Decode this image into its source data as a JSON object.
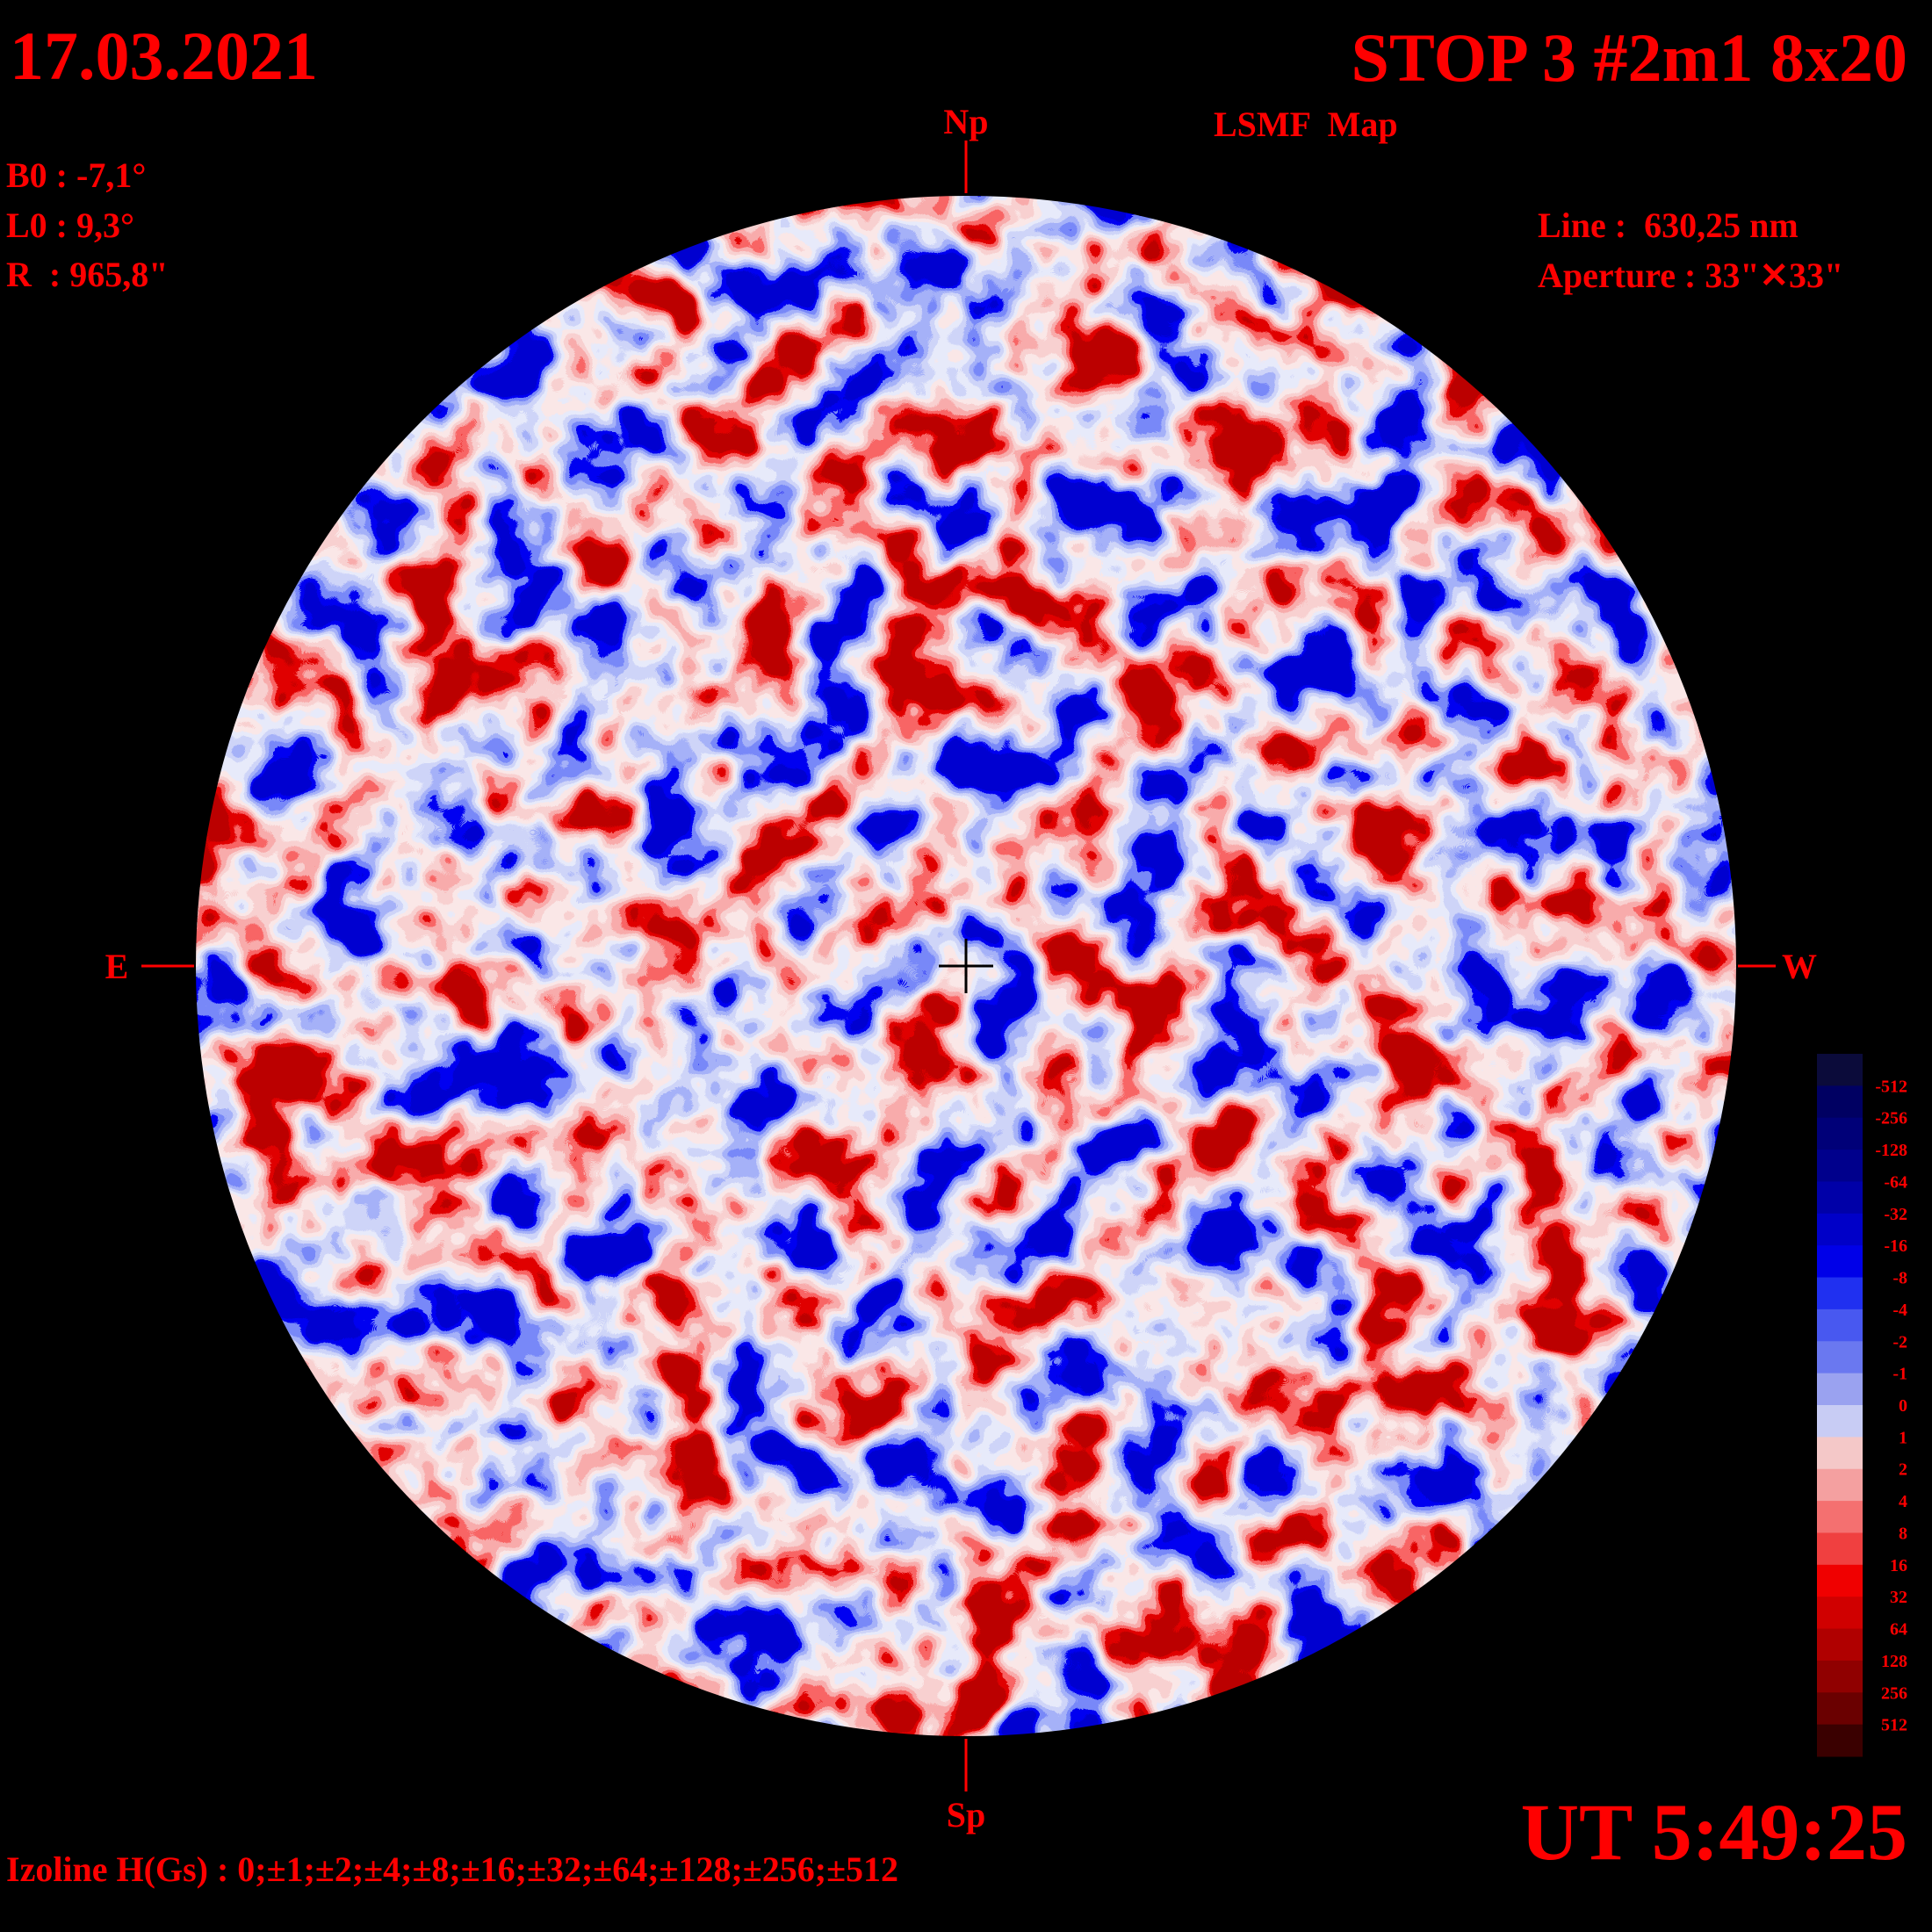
{
  "header": {
    "date": "17.03.2021",
    "title": "STOP 3 #2m1 8x20",
    "subtitle": "LSMF  Map",
    "time": "UT 5:49:25"
  },
  "params": {
    "b0": "B0 : -7,1°",
    "l0": "L0 : 9,3°",
    "r": "R  : 965,8\"",
    "line": "Line :  630,25 nm",
    "aperture": "Aperture : 33\"✕33\""
  },
  "directions": {
    "north": "Np",
    "south": "Sp",
    "east": "E",
    "west": "W"
  },
  "colorbar": {
    "levels": [
      -512,
      -256,
      -128,
      -64,
      -32,
      -16,
      -8,
      -4,
      -2,
      -1,
      0,
      1,
      2,
      4,
      8,
      16,
      32,
      64,
      128,
      256,
      512
    ],
    "colors": [
      "#0b0b3a",
      "#000062",
      "#000078",
      "#00008c",
      "#0000a8",
      "#0000c8",
      "#0000e8",
      "#2030f0",
      "#4858f0",
      "#6a78f0",
      "#9aa2f0",
      "#c8ccf4",
      "#f4c8c8",
      "#f4a0a0",
      "#f47070",
      "#f04040",
      "#f00000",
      "#d00000",
      "#b00000",
      "#900000",
      "#6a0000",
      "#3a0000"
    ]
  },
  "footer": {
    "izoline": "Izoline H(Gs) : 0;±1;±2;±4;±8;±16;±32;±64;±128;±256;±512"
  }
}
